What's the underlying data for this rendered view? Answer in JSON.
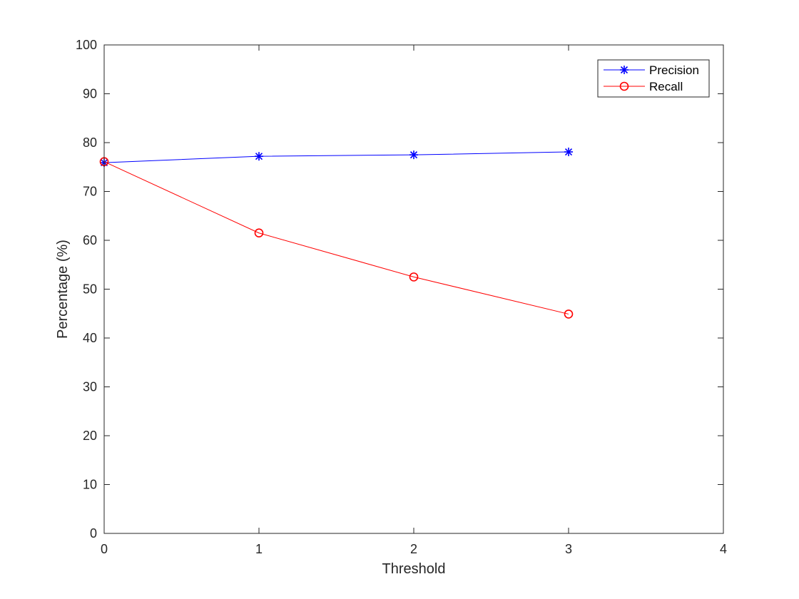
{
  "chart_data": {
    "type": "line",
    "xlabel": "Threshold",
    "ylabel": "Percentage (%)",
    "xlim": [
      0,
      4
    ],
    "ylim": [
      0,
      100
    ],
    "xticks": [
      0,
      1,
      2,
      3,
      4
    ],
    "yticks": [
      0,
      10,
      20,
      30,
      40,
      50,
      60,
      70,
      80,
      90,
      100
    ],
    "grid": false,
    "legend_position": "top-right",
    "x": [
      0,
      1,
      2,
      3
    ],
    "series": [
      {
        "name": "Precision",
        "values": [
          75.9,
          77.2,
          77.5,
          78.1
        ],
        "color": "#0000ff",
        "marker": "asterisk"
      },
      {
        "name": "Recall",
        "values": [
          76.1,
          61.5,
          52.5,
          44.9
        ],
        "color": "#ff0000",
        "marker": "circle"
      }
    ]
  }
}
